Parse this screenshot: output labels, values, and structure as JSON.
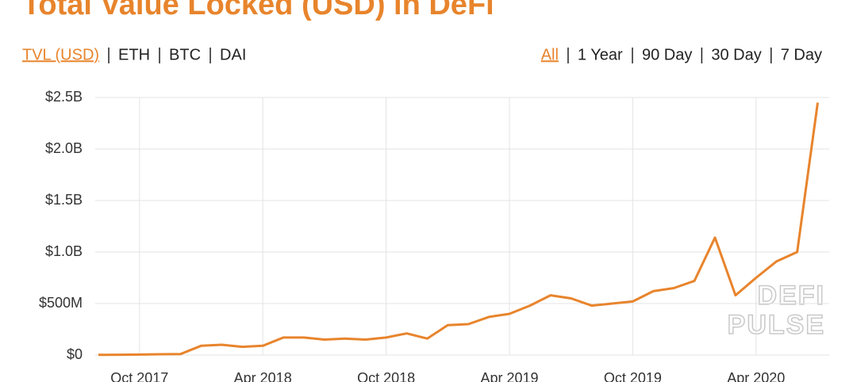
{
  "ui": {
    "tabs_left": [
      "TVL (USD)",
      "ETH",
      "BTC",
      "DAI"
    ],
    "active_left": 0,
    "tabs_right": [
      "All",
      "1 Year",
      "90 Day",
      "30 Day",
      "7 Day"
    ],
    "active_right": 0,
    "watermark": [
      "DEFI",
      "PULSE"
    ]
  },
  "chart_data": {
    "type": "line",
    "title": "Total Value Locked (USD) in DeFi",
    "x": [
      "Aug 2017",
      "Sep 2017",
      "Oct 2017",
      "Nov 2017",
      "Dec 2017",
      "Jan 2018",
      "Feb 2018",
      "Mar 2018",
      "Apr 2018",
      "May 2018",
      "Jun 2018",
      "Jul 2018",
      "Aug 2018",
      "Sep 2018",
      "Oct 2018",
      "Nov 2018",
      "Dec 2018",
      "Jan 2019",
      "Feb 2019",
      "Mar 2019",
      "Apr 2019",
      "May 2019",
      "Jun 2019",
      "Jul 2019",
      "Aug 2019",
      "Sep 2019",
      "Oct 2019",
      "Nov 2019",
      "Dec 2019",
      "Jan 2020",
      "Feb 2020",
      "Mar 2020",
      "Apr 2020",
      "May 2020",
      "Jun 2020",
      "Jul 2020"
    ],
    "series": [
      {
        "name": "TVL (USD)",
        "color": "#e8842c",
        "values": [
          2000000,
          3000000,
          5000000,
          8000000,
          10000000,
          90000000,
          100000000,
          80000000,
          90000000,
          170000000,
          170000000,
          150000000,
          160000000,
          150000000,
          170000000,
          210000000,
          160000000,
          290000000,
          300000000,
          370000000,
          400000000,
          480000000,
          580000000,
          550000000,
          480000000,
          500000000,
          520000000,
          620000000,
          650000000,
          720000000,
          1140000000,
          580000000,
          750000000,
          910000000,
          1000000000,
          2450000000
        ]
      }
    ],
    "xticks": [
      "Oct 2017",
      "Apr 2018",
      "Oct 2018",
      "Apr 2019",
      "Oct 2019",
      "Apr 2020"
    ],
    "ylim": [
      0,
      2500000000
    ],
    "yticks": [
      {
        "value": 0,
        "label": "$0"
      },
      {
        "value": 500000000,
        "label": "$500M"
      },
      {
        "value": 1000000000,
        "label": "$1.0B"
      },
      {
        "value": 1500000000,
        "label": "$1.5B"
      },
      {
        "value": 2000000000,
        "label": "$2.0B"
      },
      {
        "value": 2500000000,
        "label": "$2.5B"
      }
    ],
    "grid": true
  }
}
